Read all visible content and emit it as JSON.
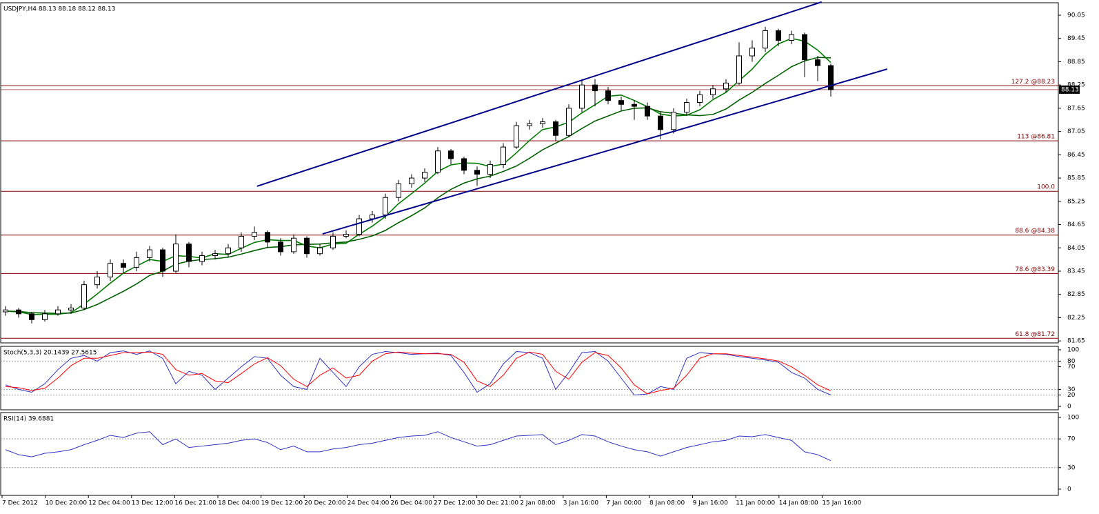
{
  "chart_data": [
    {
      "type": "candlestick",
      "title": "USDJPY,H4  88.13 88.18 88.12 88.13",
      "open": [
        82.4,
        82.45,
        82.35,
        82.2,
        82.35,
        82.45,
        82.5,
        83.1,
        83.3,
        83.65,
        83.55,
        83.8,
        84.0,
        83.45,
        84.15,
        83.7,
        83.85,
        83.9,
        84.05,
        84.35,
        84.45,
        84.2,
        83.95,
        84.3,
        83.9,
        84.05,
        84.35,
        84.4,
        84.8,
        84.9,
        85.35,
        85.7,
        85.85,
        86.0,
        86.55,
        86.35,
        86.05,
        85.95,
        86.2,
        86.65,
        87.2,
        87.25,
        87.3,
        86.95,
        87.65,
        88.25,
        88.1,
        87.85,
        87.75,
        87.7,
        87.45,
        87.1,
        87.55,
        87.8,
        88.0,
        88.15,
        88.3,
        89.0,
        89.2,
        89.65,
        89.4,
        89.55,
        88.9,
        88.75
      ],
      "high": [
        82.55,
        82.5,
        82.4,
        82.45,
        82.55,
        82.6,
        83.2,
        83.45,
        83.75,
        83.75,
        83.95,
        84.1,
        84.05,
        84.4,
        84.2,
        83.95,
        84.0,
        84.15,
        84.45,
        84.6,
        84.5,
        84.3,
        84.4,
        84.35,
        84.15,
        84.45,
        84.5,
        84.9,
        85.0,
        85.45,
        85.8,
        85.95,
        86.1,
        86.65,
        86.6,
        86.4,
        86.15,
        86.3,
        86.75,
        87.3,
        87.35,
        87.4,
        87.35,
        87.75,
        88.4,
        88.4,
        88.2,
        87.95,
        87.85,
        87.8,
        87.55,
        87.65,
        87.9,
        88.1,
        88.25,
        88.4,
        89.35,
        89.4,
        89.75,
        89.7,
        89.65,
        89.6,
        89.0,
        88.8
      ],
      "low": [
        82.3,
        82.25,
        82.1,
        82.15,
        82.3,
        82.35,
        82.45,
        83.0,
        83.2,
        83.4,
        83.45,
        83.7,
        83.3,
        83.4,
        83.55,
        83.6,
        83.75,
        83.8,
        83.95,
        84.25,
        84.05,
        83.85,
        83.9,
        83.8,
        83.85,
        84.0,
        84.3,
        84.35,
        84.7,
        84.8,
        85.25,
        85.6,
        85.75,
        85.95,
        86.2,
        85.95,
        85.65,
        85.85,
        86.1,
        86.6,
        87.1,
        87.15,
        86.8,
        86.9,
        87.55,
        87.7,
        87.75,
        87.6,
        87.35,
        87.35,
        86.85,
        87.0,
        87.45,
        87.7,
        87.9,
        88.05,
        88.25,
        88.85,
        89.1,
        89.25,
        89.3,
        88.45,
        88.35,
        87.95
      ],
      "close": [
        82.45,
        82.35,
        82.2,
        82.35,
        82.45,
        82.5,
        83.1,
        83.3,
        83.65,
        83.55,
        83.8,
        84.0,
        83.45,
        84.15,
        83.7,
        83.85,
        83.9,
        84.05,
        84.35,
        84.45,
        84.2,
        83.95,
        84.3,
        83.9,
        84.05,
        84.35,
        84.4,
        84.8,
        84.9,
        85.35,
        85.7,
        85.85,
        86.0,
        86.55,
        86.35,
        86.05,
        85.95,
        86.2,
        86.65,
        87.2,
        87.25,
        87.3,
        86.95,
        87.65,
        88.25,
        88.1,
        87.85,
        87.75,
        87.7,
        87.45,
        87.1,
        87.55,
        87.8,
        88.0,
        88.15,
        88.3,
        89.0,
        89.2,
        89.65,
        89.4,
        89.55,
        88.9,
        88.75,
        88.13
      ],
      "lines": [
        {
          "color": "#007a00",
          "values": [
            82.42,
            82.4,
            82.33,
            82.34,
            82.34,
            82.38,
            82.6,
            82.86,
            83.14,
            83.4,
            83.58,
            83.75,
            83.7,
            83.85,
            83.83,
            83.79,
            83.9,
            83.88,
            84.04,
            84.19,
            84.26,
            84.24,
            84.24,
            84.1,
            84.05,
            84.15,
            84.17,
            84.4,
            84.61,
            84.86,
            85.19,
            85.45,
            85.72,
            86.02,
            86.19,
            86.24,
            86.23,
            86.15,
            86.21,
            86.5,
            86.82,
            87.1,
            87.17,
            87.29,
            87.53,
            87.74,
            87.96,
            87.99,
            87.85,
            87.69,
            87.5,
            87.45,
            87.47,
            87.61,
            87.87,
            88.06,
            88.36,
            88.66,
            89.04,
            89.31,
            89.45,
            89.38,
            89.15,
            88.83
          ]
        },
        {
          "color": "#006000",
          "values": [
            82.42,
            82.41,
            82.38,
            82.37,
            82.36,
            82.37,
            82.46,
            82.59,
            82.76,
            82.93,
            83.12,
            83.34,
            83.45,
            83.63,
            83.71,
            83.75,
            83.77,
            83.81,
            83.89,
            83.98,
            84.06,
            84.08,
            84.13,
            84.14,
            84.15,
            84.18,
            84.2,
            84.27,
            84.36,
            84.5,
            84.7,
            84.88,
            85.08,
            85.34,
            85.56,
            85.72,
            85.83,
            85.9,
            86.02,
            86.16,
            86.36,
            86.58,
            86.75,
            86.92,
            87.13,
            87.32,
            87.45,
            87.58,
            87.65,
            87.66,
            87.56,
            87.52,
            87.48,
            87.46,
            87.49,
            87.63,
            87.86,
            88.06,
            88.29,
            88.5,
            88.72,
            88.87,
            88.96,
            88.95
          ]
        }
      ],
      "trendlines": [
        {
          "color": "#00008b",
          "x": [
            19.2,
            62.3
          ],
          "y": [
            85.64,
            90.39
          ]
        },
        {
          "color": "#00008b",
          "x": [
            24.2,
            67.3
          ],
          "y": [
            84.41,
            88.66
          ]
        }
      ],
      "levels": [
        {
          "value": 88.23,
          "label": "127.2 @88.23"
        },
        {
          "value": 86.81,
          "label": "113 @86.81"
        },
        {
          "value": 85.51,
          "label": "100.0"
        },
        {
          "value": 84.38,
          "label": "88.6 @84.38"
        },
        {
          "value": 83.39,
          "label": "78.6 @83.39"
        },
        {
          "value": 81.72,
          "label": "61.8 @81.72"
        }
      ],
      "level_color": "#800000",
      "last": 88.13,
      "ylim": [
        81.6,
        90.37
      ],
      "yticks": [
        90.05,
        89.45,
        88.85,
        88.25,
        87.65,
        87.05,
        86.45,
        85.85,
        85.25,
        84.65,
        84.05,
        83.45,
        82.85,
        82.25,
        81.65
      ],
      "time_labels": [
        "7 Dec 2012",
        "10 Dec 20:00",
        "12 Dec 04:00",
        "13 Dec 12:00",
        "16 Dec 21:00",
        "18 Dec 04:00",
        "19 Dec 12:00",
        "20 Dec 20:00",
        "24 Dec 04:00",
        "26 Dec 04:00",
        "27 Dec 12:00",
        "30 Dec 21:00",
        "2 Jan 08:00",
        "3 Jan 16:00",
        "7 Jan 00:00",
        "8 Jan 08:00",
        "9 Jan 16:00",
        "11 Jan 00:00",
        "14 Jan 08:00",
        "15 Jan 16:00"
      ]
    },
    {
      "type": "line",
      "title": "Stoch(5,3,3) 20.1439 27.5615",
      "series": [
        {
          "color": "#3030c0",
          "values": [
            38,
            30,
            25,
            40,
            65,
            85,
            90,
            80,
            95,
            98,
            92,
            98,
            85,
            40,
            62,
            55,
            30,
            50,
            70,
            88,
            85,
            55,
            35,
            30,
            85,
            60,
            35,
            70,
            92,
            97,
            95,
            92,
            93,
            94,
            90,
            60,
            25,
            40,
            75,
            97,
            95,
            85,
            30,
            60,
            95,
            97,
            80,
            50,
            20,
            22,
            35,
            30,
            85,
            95,
            93,
            92,
            88,
            85,
            82,
            78,
            60,
            50,
            30,
            20.14
          ]
        },
        {
          "color": "#ff0000",
          "values": [
            35,
            33,
            28,
            32,
            50,
            72,
            85,
            85,
            90,
            95,
            95,
            96,
            92,
            65,
            55,
            58,
            45,
            42,
            58,
            75,
            86,
            72,
            48,
            35,
            55,
            68,
            50,
            55,
            80,
            93,
            96,
            94,
            93,
            93,
            92,
            78,
            45,
            35,
            55,
            85,
            96,
            92,
            62,
            48,
            78,
            95,
            90,
            68,
            38,
            22,
            28,
            32,
            55,
            85,
            93,
            93,
            90,
            87,
            84,
            80,
            70,
            55,
            38,
            27.56
          ]
        }
      ],
      "ylim": [
        -6.1,
        106.1
      ],
      "yticks": [
        100,
        80,
        70,
        30,
        20,
        0
      ],
      "levels": [
        80,
        30,
        20
      ]
    },
    {
      "type": "line",
      "title": "RSI(14) 39.6881",
      "series": [
        {
          "color": "#3030c0",
          "values": [
            55,
            48,
            45,
            50,
            52,
            55,
            62,
            68,
            75,
            72,
            78,
            80,
            62,
            70,
            58,
            60,
            62,
            64,
            68,
            70,
            65,
            55,
            60,
            52,
            52,
            56,
            58,
            62,
            64,
            68,
            72,
            74,
            75,
            80,
            72,
            66,
            60,
            62,
            68,
            74,
            75,
            76,
            62,
            68,
            76,
            74,
            66,
            60,
            55,
            52,
            46,
            52,
            58,
            62,
            66,
            68,
            74,
            73,
            76,
            72,
            68,
            52,
            48,
            39.69
          ]
        }
      ],
      "ylim": [
        -8.7,
        106.7
      ],
      "yticks": [
        100,
        70,
        30,
        0
      ],
      "levels": [
        70,
        30
      ]
    }
  ]
}
